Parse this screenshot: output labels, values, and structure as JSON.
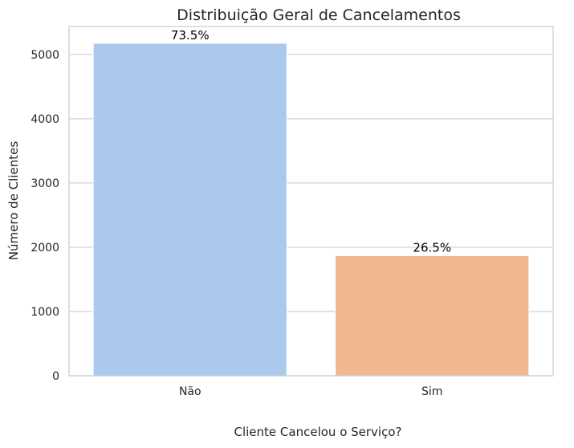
{
  "chart_data": {
    "type": "bar",
    "title": "Distribuição Geral de Cancelamentos",
    "xlabel": "Cliente Cancelou o Serviço?",
    "ylabel": "Número de Clientes",
    "categories": [
      "Não",
      "Sim"
    ],
    "values": [
      5174,
      1869
    ],
    "data_labels": [
      "73.5%",
      "26.5%"
    ],
    "colors": [
      "#abc9ec",
      "#f0b891"
    ],
    "ylim": [
      0,
      5435
    ],
    "yticks": [
      0,
      1000,
      2000,
      3000,
      4000,
      5000
    ],
    "grid": true,
    "legend": "none"
  }
}
